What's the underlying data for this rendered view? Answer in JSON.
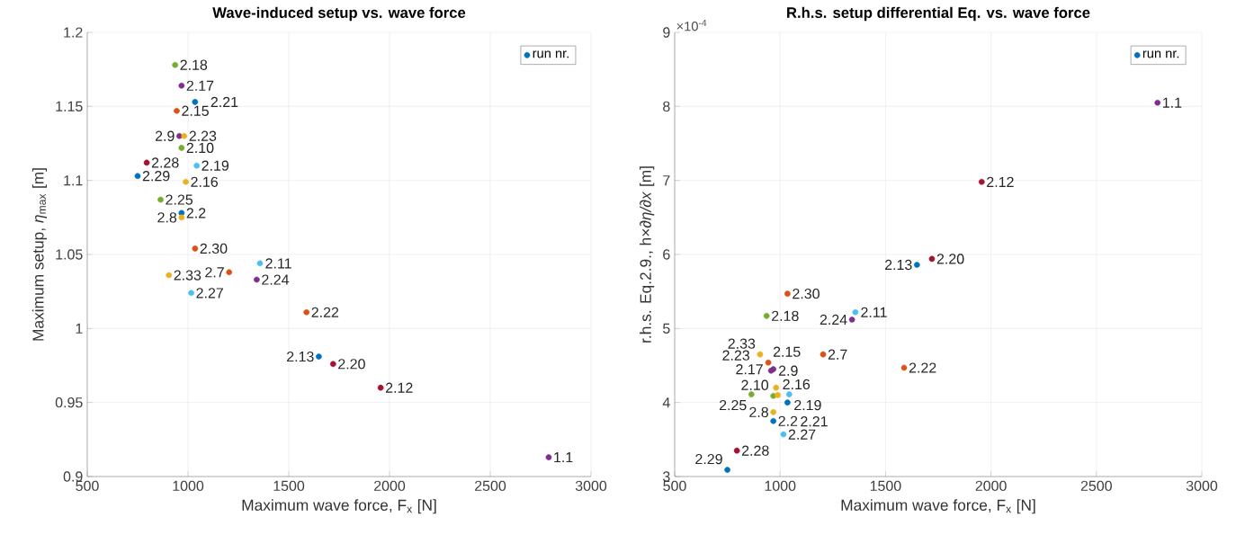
{
  "chart_data": [
    {
      "type": "scatter",
      "title": "Wave-induced setup vs. wave force",
      "xlabel": "Maximum wave force, F$_{x}$ [N]",
      "ylabel": "Maximum setup, *η*$_{max}$ [m]",
      "x": [
        2790,
        968,
        1204,
        968,
        957,
        968,
        1357,
        1956,
        1649,
        944,
        989,
        968,
        936,
        1043,
        1720,
        1035,
        1588,
        981,
        1341,
        864,
        1016,
        795,
        750,
        1035,
        905
      ],
      "series": [
        {
          "name": "run nr.",
          "color": "#0072bd",
          "colors": [
            "#7e2f8e",
            "#0072bd",
            "#d95319",
            "#edb120",
            "#7e2f8e",
            "#77ac30",
            "#4dbeee",
            "#a2142f",
            "#0072bd",
            "#d95319",
            "#edb120",
            "#7e2f8e",
            "#77ac30",
            "#4dbeee",
            "#a2142f",
            "#0072bd",
            "#d95319",
            "#edb120",
            "#7e2f8e",
            "#77ac30",
            "#4dbeee",
            "#a2142f",
            "#0072bd",
            "#d95319",
            "#edb120"
          ],
          "values": [
            0.913,
            1.078,
            1.038,
            1.075,
            1.13,
            1.122,
            1.044,
            0.96,
            0.981,
            1.147,
            1.099,
            1.164,
            1.178,
            1.11,
            0.976,
            1.153,
            1.011,
            1.13,
            1.033,
            1.087,
            1.024,
            1.112,
            1.103,
            1.054,
            1.036
          ]
        }
      ],
      "xlim": [
        500,
        3000
      ],
      "xticks": [
        500,
        1000,
        1500,
        2000,
        2500,
        3000
      ],
      "ylim": [
        0.9,
        1.2
      ],
      "yticks": [
        0.9,
        0.95,
        1,
        1.05,
        1.1,
        1.15,
        1.2
      ],
      "grid": true,
      "legend": "top right",
      "annotations": [
        {
          "text": "1.1",
          "x": 2790,
          "y": 0.913
        },
        {
          "text": "2.2",
          "x": 968,
          "y": 1.078
        },
        {
          "text": "2.7",
          "x": 1204,
          "y": 1.038
        },
        {
          "text": "2.8",
          "x": 968,
          "y": 1.075
        },
        {
          "text": "2.9",
          "x": 957,
          "y": 1.13
        },
        {
          "text": "2.10",
          "x": 968,
          "y": 1.122
        },
        {
          "text": "2.11",
          "x": 1357,
          "y": 1.044
        },
        {
          "text": "2.12",
          "x": 1956,
          "y": 0.96
        },
        {
          "text": "2.13",
          "x": 1649,
          "y": 0.981
        },
        {
          "text": "2.15",
          "x": 944,
          "y": 1.147
        },
        {
          "text": "2.16",
          "x": 989,
          "y": 1.099
        },
        {
          "text": "2.17",
          "x": 968,
          "y": 1.164
        },
        {
          "text": "2.18",
          "x": 936,
          "y": 1.178
        },
        {
          "text": "2.19",
          "x": 1043,
          "y": 1.11
        },
        {
          "text": "2.20",
          "x": 1720,
          "y": 0.976
        },
        {
          "text": "2.21",
          "x": 1035,
          "y": 1.153
        },
        {
          "text": "2.22",
          "x": 1588,
          "y": 1.011
        },
        {
          "text": "2.23",
          "x": 981,
          "y": 1.13
        },
        {
          "text": "2.24",
          "x": 1341,
          "y": 1.033
        },
        {
          "text": "2.25",
          "x": 864,
          "y": 1.087
        },
        {
          "text": "2.27",
          "x": 1016,
          "y": 1.024
        },
        {
          "text": "2.28",
          "x": 795,
          "y": 1.112
        },
        {
          "text": "2.29",
          "x": 750,
          "y": 1.103
        },
        {
          "text": "2.30",
          "x": 1035,
          "y": 1.054
        },
        {
          "text": "2.33",
          "x": 905,
          "y": 1.036
        }
      ]
    },
    {
      "type": "scatter",
      "title": "R.h.s. setup differential Eq. vs. wave force",
      "xlabel": "Maximum wave force, F$_{x}$ [N]",
      "ylabel": "r.h.s. Eq.2.9., h×*∂η/∂x* [m]",
      "x": [
        2790,
        968,
        1204,
        968,
        957,
        968,
        1357,
        1956,
        1649,
        944,
        989,
        968,
        936,
        1043,
        1720,
        1035,
        1588,
        981,
        1341,
        864,
        1016,
        795,
        750,
        1035,
        905
      ],
      "series": [
        {
          "name": "run nr.",
          "color": "#0072bd",
          "colors": [
            "#7e2f8e",
            "#0072bd",
            "#d95319",
            "#edb120",
            "#7e2f8e",
            "#77ac30",
            "#4dbeee",
            "#a2142f",
            "#0072bd",
            "#d95319",
            "#edb120",
            "#7e2f8e",
            "#77ac30",
            "#4dbeee",
            "#a2142f",
            "#0072bd",
            "#d95319",
            "#edb120",
            "#7e2f8e",
            "#77ac30",
            "#4dbeee",
            "#a2142f",
            "#0072bd",
            "#d95319",
            "#edb120"
          ],
          "values": [
            8.05,
            3.75,
            4.65,
            3.87,
            4.43,
            4.09,
            5.22,
            6.98,
            5.86,
            4.54,
            4.1,
            4.45,
            5.17,
            4.11,
            5.94,
            4.0,
            4.47,
            4.2,
            5.12,
            4.11,
            3.57,
            3.35,
            3.09,
            5.47,
            4.65
          ]
        }
      ],
      "xlim": [
        500,
        3000
      ],
      "xticks": [
        500,
        1000,
        1500,
        2000,
        2500,
        3000
      ],
      "ylim": [
        3,
        9
      ],
      "yticks": [
        3,
        4,
        5,
        6,
        7,
        8,
        9
      ],
      "grid": true,
      "legend": "top right",
      "annotations": [
        "×10$^{-4}$",
        {
          "text": "1.1",
          "x": 2790,
          "y": 8.05
        },
        {
          "text": "2.2",
          "x": 968,
          "y": 3.75
        },
        {
          "text": "2.7",
          "x": 1204,
          "y": 4.65
        },
        {
          "text": "2.8",
          "x": 968,
          "y": 3.87
        },
        {
          "text": "2.9",
          "x": 957,
          "y": 4.43
        },
        {
          "text": "2.10",
          "x": 968,
          "y": 4.09
        },
        {
          "text": "2.11",
          "x": 1357,
          "y": 5.22
        },
        {
          "text": "2.12",
          "x": 1956,
          "y": 6.98
        },
        {
          "text": "2.13",
          "x": 1649,
          "y": 5.86
        },
        {
          "text": "2.15",
          "x": 944,
          "y": 4.54
        },
        {
          "text": "2.16",
          "x": 989,
          "y": 4.1
        },
        {
          "text": "2.17",
          "x": 968,
          "y": 4.45
        },
        {
          "text": "2.18",
          "x": 936,
          "y": 5.17
        },
        {
          "text": "2.19",
          "x": 1043,
          "y": 4.11
        },
        {
          "text": "2.20",
          "x": 1720,
          "y": 5.94
        },
        {
          "text": "2.21",
          "x": 1035,
          "y": 4.0
        },
        {
          "text": "2.22",
          "x": 1588,
          "y": 4.47
        },
        {
          "text": "2.23",
          "x": 981,
          "y": 4.2
        },
        {
          "text": "2.24",
          "x": 1341,
          "y": 5.12
        },
        {
          "text": "2.25",
          "x": 864,
          "y": 4.11
        },
        {
          "text": "2.27",
          "x": 1016,
          "y": 3.57
        },
        {
          "text": "2.28",
          "x": 795,
          "y": 3.35
        },
        {
          "text": "2.29",
          "x": 750,
          "y": 3.09
        },
        {
          "text": "2.30",
          "x": 1035,
          "y": 5.47
        },
        {
          "text": "2.33",
          "x": 905,
          "y": 4.65
        }
      ]
    }
  ]
}
